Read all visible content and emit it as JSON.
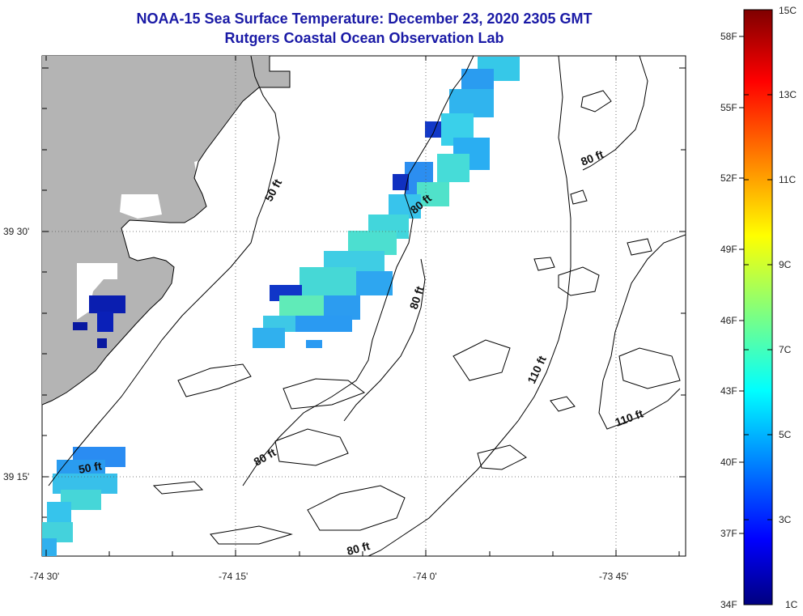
{
  "header": {
    "title": "NOAA-15 Sea Surface Temperature:  December 23, 2020 2305 GMT",
    "subtitle": "Rutgers Coastal Ocean Observation Lab"
  },
  "map": {
    "lat_labels": [
      "39 30'",
      "39 15'"
    ],
    "lon_labels": [
      "-74 30'",
      "-74 15'",
      "-74 0'",
      "-73 45'"
    ],
    "contour_labels": [
      "50 ft",
      "80 ft",
      "80 ft",
      "80 ft",
      "110 ft",
      "110 ft",
      "50 ft",
      "80 ft",
      "80 ft"
    ],
    "colors": {
      "land": "#b4b4b4",
      "water": "#ffffff",
      "contour": "#000000"
    }
  },
  "colorbar": {
    "celsius_labels": [
      "15C",
      "13C",
      "11C",
      "9C",
      "7C",
      "5C",
      "3C",
      "1C"
    ],
    "fahrenheit_labels": [
      "58F",
      "55F",
      "52F",
      "49F",
      "46F",
      "43F",
      "40F",
      "37F",
      "34F"
    ],
    "colormap": "jet",
    "range_c": [
      1,
      15
    ]
  }
}
